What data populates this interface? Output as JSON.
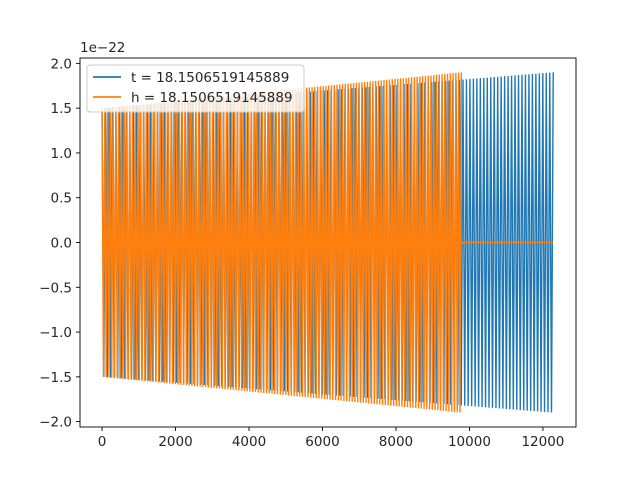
{
  "chart_data": {
    "type": "line",
    "title": "",
    "xlabel": "",
    "ylabel": "",
    "y_offset_text": "1e−22",
    "xlim": [
      -600,
      12900
    ],
    "ylim": [
      -2.06,
      2.06
    ],
    "x_ticks": [
      0,
      2000,
      4000,
      6000,
      8000,
      10000,
      12000
    ],
    "x_tick_labels": [
      "0",
      "2000",
      "4000",
      "6000",
      "8000",
      "10000",
      "12000"
    ],
    "y_ticks": [
      -2.0,
      -1.5,
      -1.0,
      -0.5,
      0.0,
      0.5,
      1.0,
      1.5,
      2.0
    ],
    "y_tick_labels": [
      "−2.0",
      "−1.5",
      "−1.0",
      "−0.5",
      "0.0",
      "0.5",
      "1.0",
      "1.5",
      "2.0"
    ],
    "grid": false,
    "legend_position": "upper-left",
    "series": [
      {
        "name": "t = 18.1506519145889",
        "color": "#1f77b4",
        "kind": "chirp",
        "x_start": 0,
        "x_end": 12280,
        "amplitude_start": 1.5,
        "amplitude_end": 1.9,
        "cycles": 130,
        "flat_after": null
      },
      {
        "name": "h = 18.1506519145889",
        "color": "#ff7f0e",
        "kind": "chirp",
        "x_start": 0,
        "x_end": 9780,
        "amplitude_start": 1.5,
        "amplitude_end": 1.9,
        "cycles": 130,
        "flat_after": [
          9780,
          12280
        ]
      }
    ]
  }
}
